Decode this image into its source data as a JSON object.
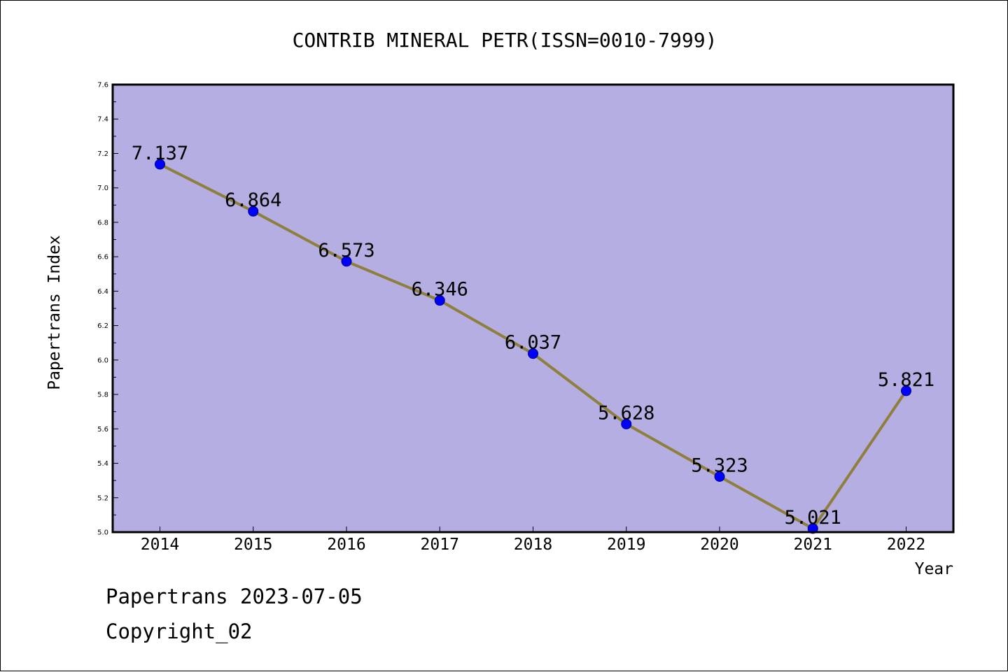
{
  "chart_data": {
    "type": "line",
    "title": "CONTRIB MINERAL PETR(ISSN=0010-7999)",
    "xlabel": "Year",
    "ylabel": "Papertrans Index",
    "categories": [
      "2014",
      "2015",
      "2016",
      "2017",
      "2018",
      "2019",
      "2020",
      "2021",
      "2022"
    ],
    "series": [
      {
        "values": [
          7.137,
          6.864,
          6.573,
          6.346,
          6.037,
          5.628,
          5.323,
          5.021,
          5.821
        ],
        "data_labels": [
          "7.137",
          "6.864",
          "6.573",
          "6.346",
          "6.037",
          "5.628",
          "5.323",
          "5.021",
          "5.821"
        ]
      }
    ],
    "ylim": [
      5.0,
      7.6
    ],
    "y_ticks": [
      "5.0",
      "5.2",
      "5.4",
      "5.6",
      "5.8",
      "6.0",
      "6.2",
      "6.4",
      "6.6",
      "6.8",
      "7.0",
      "7.2",
      "7.4",
      "7.6"
    ],
    "grid": false,
    "legend": "none",
    "colors": {
      "plot_background": "#b4aee2",
      "line": "#8f7f3c",
      "marker": "#0000ff"
    }
  },
  "footer": {
    "date_line": "Papertrans 2023-07-05",
    "copyright": "Copyright_02"
  }
}
